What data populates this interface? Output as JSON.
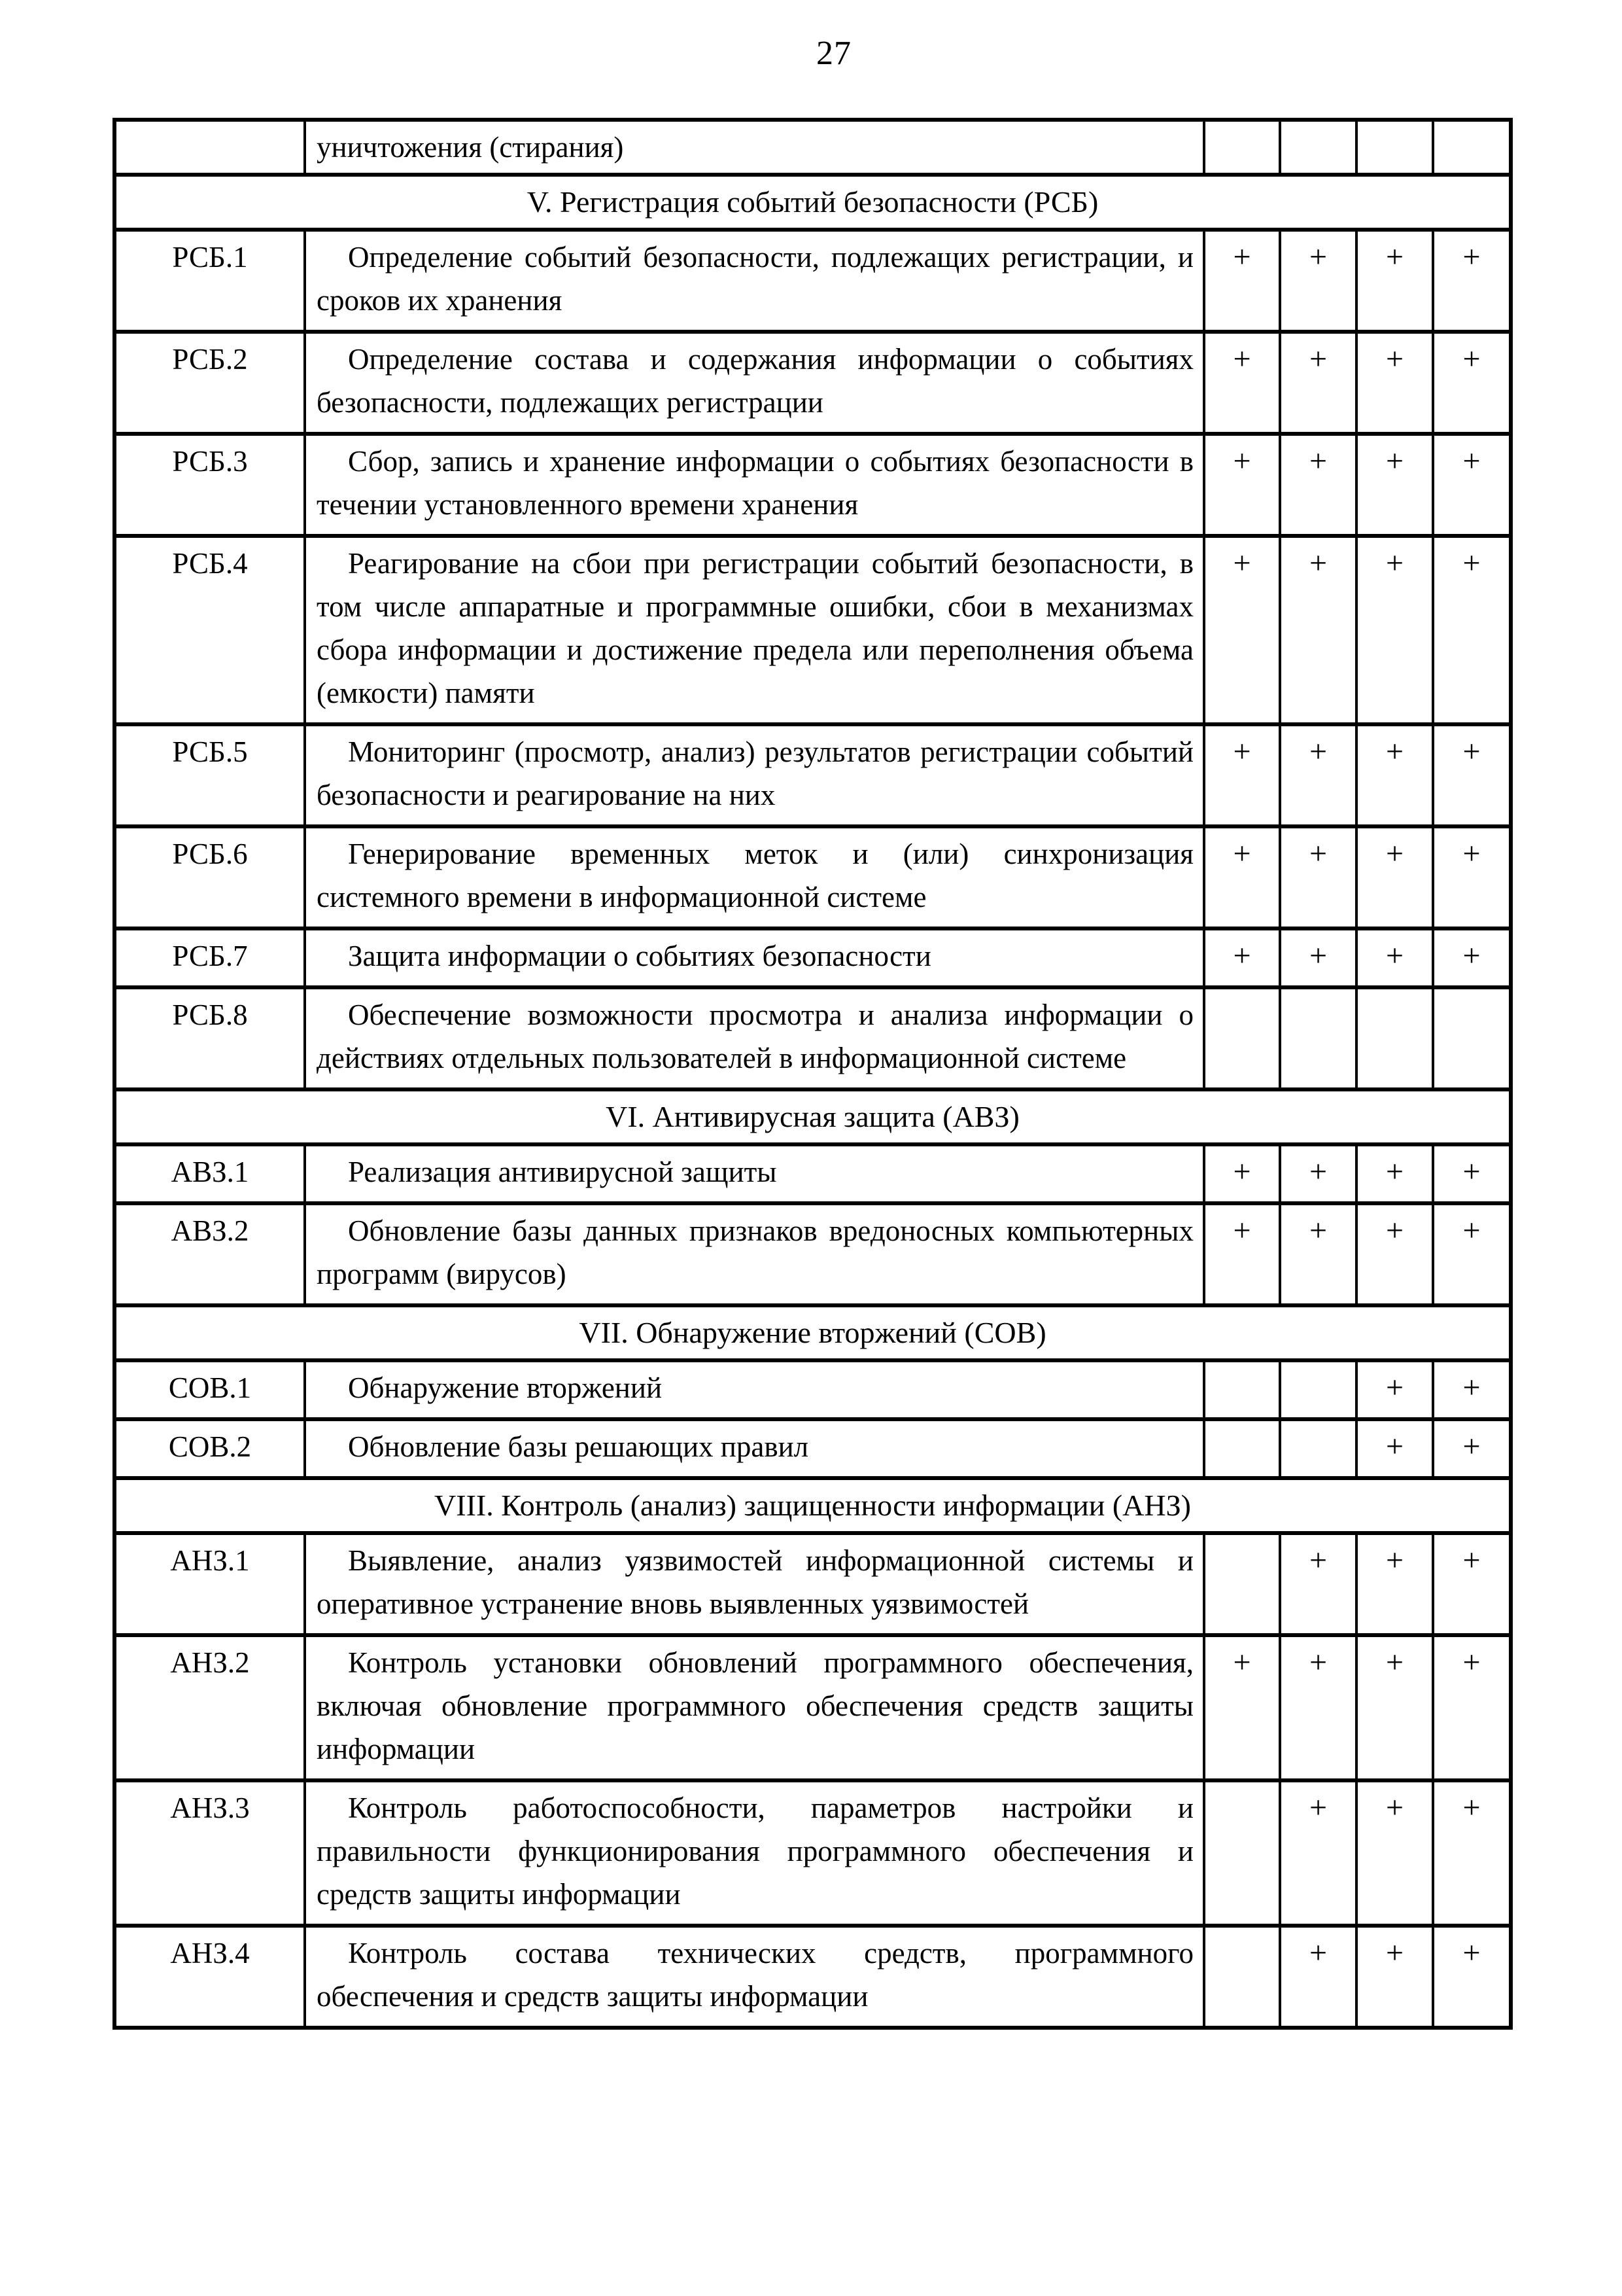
{
  "page": {
    "number": "27"
  },
  "colors": {
    "ink": "#000000",
    "paper": "#ffffff"
  },
  "table": {
    "mark_symbol": "+",
    "mark_column_count": 4,
    "rows": [
      {
        "type": "cont",
        "code": "",
        "text": "уничтожения (стирания)",
        "marks": [
          "",
          "",
          "",
          ""
        ]
      },
      {
        "type": "section",
        "text": "V. Регистрация событий безопасности (РСБ)"
      },
      {
        "type": "item",
        "code": "РСБ.1",
        "text": "Определение событий безопасности, подлежащих регистрации, и сроков их хранения",
        "marks": [
          "+",
          "+",
          "+",
          "+"
        ]
      },
      {
        "type": "item",
        "code": "РСБ.2",
        "text": "Определение состава и содержания информации о событиях безопасности, подлежащих регистрации",
        "marks": [
          "+",
          "+",
          "+",
          "+"
        ]
      },
      {
        "type": "item",
        "code": "РСБ.3",
        "text": "Сбор, запись и хранение информации о событиях безопасности в течении установленного времени хранения",
        "marks": [
          "+",
          "+",
          "+",
          "+"
        ]
      },
      {
        "type": "item",
        "code": "РСБ.4",
        "text": "Реагирование на сбои при регистрации событий безопасности, в том числе аппаратные и программные ошибки, сбои в механизмах сбора информации и достижение предела или переполнения объема (емкости) памяти",
        "marks": [
          "+",
          "+",
          "+",
          "+"
        ]
      },
      {
        "type": "item",
        "code": "РСБ.5",
        "text": "Мониторинг (просмотр, анализ) результатов регистрации событий безопасности и реагирование на них",
        "marks": [
          "+",
          "+",
          "+",
          "+"
        ]
      },
      {
        "type": "item",
        "code": "РСБ.6",
        "text": "Генерирование временных меток и (или) синхронизация системного времени в информационной системе",
        "marks": [
          "+",
          "+",
          "+",
          "+"
        ]
      },
      {
        "type": "item",
        "code": "РСБ.7",
        "text": "Защита информации о событиях безопасности",
        "marks": [
          "+",
          "+",
          "+",
          "+"
        ]
      },
      {
        "type": "item",
        "code": "РСБ.8",
        "text": "Обеспечение возможности просмотра и анализа информации о действиях отдельных пользователей в информационной системе",
        "marks": [
          "",
          "",
          "",
          ""
        ]
      },
      {
        "type": "section",
        "text": "VI. Антивирусная защита (АВЗ)"
      },
      {
        "type": "item",
        "code": "АВЗ.1",
        "text": "Реализация антивирусной защиты",
        "marks": [
          "+",
          "+",
          "+",
          "+"
        ]
      },
      {
        "type": "item",
        "code": "АВЗ.2",
        "text": "Обновление базы данных признаков вредоносных компьютерных программ (вирусов)",
        "marks": [
          "+",
          "+",
          "+",
          "+"
        ]
      },
      {
        "type": "section",
        "text": "VII. Обнаружение вторжений (СОВ)"
      },
      {
        "type": "item",
        "code": "СОВ.1",
        "text": "Обнаружение вторжений",
        "marks": [
          "",
          "",
          "+",
          "+"
        ]
      },
      {
        "type": "item",
        "code": "СОВ.2",
        "text": "Обновление базы решающих правил",
        "marks": [
          "",
          "",
          "+",
          "+"
        ]
      },
      {
        "type": "section",
        "text": "VIII. Контроль (анализ) защищенности  информации (АНЗ)"
      },
      {
        "type": "item",
        "code": "АНЗ.1",
        "text": "Выявление, анализ уязвимостей информационной системы и оперативное устранение вновь выявленных уязвимостей",
        "marks": [
          "",
          "+",
          "+",
          "+"
        ]
      },
      {
        "type": "item",
        "code": "АНЗ.2",
        "text": "Контроль установки обновлений программного обеспечения, включая обновление программного обеспечения средств защиты информации",
        "marks": [
          "+",
          "+",
          "+",
          "+"
        ]
      },
      {
        "type": "item",
        "code": "АНЗ.3",
        "text": "Контроль работоспособности, параметров настройки и правильности функционирования программного обеспечения и средств защиты информации",
        "marks": [
          "",
          "+",
          "+",
          "+"
        ]
      },
      {
        "type": "item",
        "code": "АНЗ.4",
        "text": "Контроль состава технических средств, программного обеспечения и средств защиты информации",
        "marks": [
          "",
          "+",
          "+",
          "+"
        ]
      }
    ]
  }
}
